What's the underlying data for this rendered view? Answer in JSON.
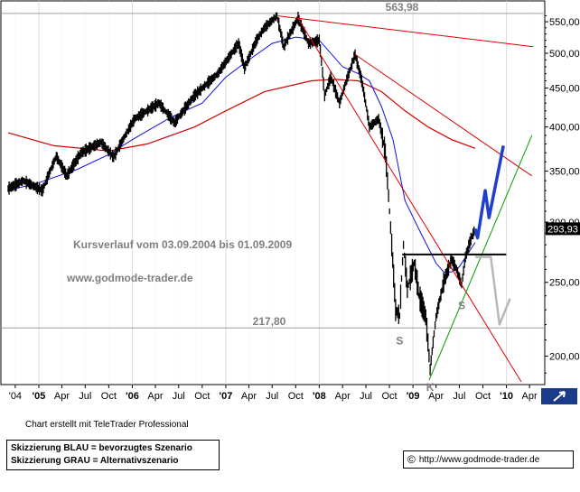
{
  "chart_data": {
    "type": "line",
    "title": "Kursverlauf vom 03.09.2004 bis 01.09.2009",
    "subtitle": "www.godmode-trader.de",
    "y_scale": "log",
    "ylim": [
      186,
      570
    ],
    "y_ticks": [
      "550,00",
      "500,00",
      "450,00",
      "400,00",
      "350,00",
      "300,00",
      "250,00",
      "200,00"
    ],
    "x_tick_labels": [
      "'04",
      "'05",
      "Apr",
      "Jul",
      "Oct",
      "'06",
      "Apr",
      "Jul",
      "Oct",
      "'07",
      "Apr",
      "Jul",
      "Oct",
      "'08",
      "Apr",
      "Jul",
      "Oct",
      "'09",
      "Apr",
      "Jul",
      "Oct",
      "'10",
      "Apr"
    ],
    "current_value_label": "293,93",
    "horizontal_levels": [
      {
        "label": "563,98",
        "value": 563.98,
        "color": "#a0a0a0"
      },
      {
        "label": "217,80",
        "value": 217.8,
        "color": "#a0a0a0"
      }
    ],
    "pattern_labels": [
      {
        "text": "S",
        "date": "2008-11-10",
        "value": 214
      },
      {
        "text": "S",
        "date": "2009-07-10",
        "value": 238
      },
      {
        "text": "K",
        "date": "2009-03-09",
        "value": 186
      }
    ],
    "neckline": {
      "start": "2008-11-20",
      "end": "2009-12-31",
      "value": 272,
      "color": "#000000"
    },
    "scenarios": [
      {
        "name": "Skizzierung BLAU = bevorzugtes Szenario",
        "color": "#1f3fcf",
        "points": [
          [
            "2009-09-01",
            294
          ],
          [
            "2009-09-10",
            286
          ],
          [
            "2009-10-10",
            330
          ],
          [
            "2009-10-25",
            304
          ],
          [
            "2009-12-20",
            378
          ]
        ]
      },
      {
        "name": "Skizzierung GRAU = Alternativszenario",
        "color": "#b8b8b8",
        "points": [
          [
            "2009-09-01",
            270
          ],
          [
            "2009-11-01",
            270
          ],
          [
            "2009-12-05",
            220
          ],
          [
            "2010-01-15",
            238
          ]
        ]
      }
    ],
    "trendlines": [
      {
        "color": "#e00000",
        "points": [
          [
            "2007-07-20",
            560
          ],
          [
            "2010-04-15",
            510
          ]
        ]
      },
      {
        "color": "#e00000",
        "points": [
          [
            "2007-10-10",
            556
          ],
          [
            "2010-02-28",
            185
          ]
        ]
      },
      {
        "color": "#e00000",
        "points": [
          [
            "2008-05-20",
            498
          ],
          [
            "2010-04-10",
            345
          ]
        ]
      },
      {
        "color": "#00a000",
        "points": [
          [
            "2009-03-05",
            186
          ],
          [
            "2010-04-10",
            390
          ]
        ]
      }
    ],
    "price_anchors": [
      [
        "2004-09-03",
        332
      ],
      [
        "2004-11-01",
        340
      ],
      [
        "2005-01-15",
        330
      ],
      [
        "2005-03-10",
        366
      ],
      [
        "2005-04-20",
        345
      ],
      [
        "2005-06-15",
        370
      ],
      [
        "2005-09-01",
        382
      ],
      [
        "2005-10-20",
        365
      ],
      [
        "2006-01-10",
        410
      ],
      [
        "2006-04-15",
        430
      ],
      [
        "2006-06-15",
        405
      ],
      [
        "2006-09-01",
        440
      ],
      [
        "2006-12-01",
        470
      ],
      [
        "2007-02-20",
        515
      ],
      [
        "2007-03-15",
        478
      ],
      [
        "2007-05-01",
        520
      ],
      [
        "2007-06-01",
        540
      ],
      [
        "2007-07-20",
        560
      ],
      [
        "2007-08-15",
        510
      ],
      [
        "2007-10-10",
        556
      ],
      [
        "2007-11-20",
        515
      ],
      [
        "2008-01-01",
        520
      ],
      [
        "2008-01-22",
        440
      ],
      [
        "2008-02-15",
        465
      ],
      [
        "2008-03-20",
        430
      ],
      [
        "2008-05-20",
        498
      ],
      [
        "2008-06-15",
        460
      ],
      [
        "2008-07-15",
        400
      ],
      [
        "2008-08-20",
        410
      ],
      [
        "2008-09-15",
        370
      ],
      [
        "2008-10-10",
        280
      ],
      [
        "2008-10-25",
        230
      ],
      [
        "2008-11-10",
        226
      ],
      [
        "2008-11-25",
        280
      ],
      [
        "2008-12-10",
        245
      ],
      [
        "2009-01-06",
        265
      ],
      [
        "2009-01-25",
        240
      ],
      [
        "2009-02-20",
        225
      ],
      [
        "2009-03-09",
        192
      ],
      [
        "2009-04-01",
        225
      ],
      [
        "2009-05-01",
        250
      ],
      [
        "2009-06-01",
        268
      ],
      [
        "2009-06-20",
        260
      ],
      [
        "2009-07-10",
        248
      ],
      [
        "2009-07-25",
        270
      ],
      [
        "2009-08-15",
        285
      ],
      [
        "2009-09-01",
        294
      ]
    ],
    "ma_fast": {
      "color": "#1010e0",
      "points": [
        [
          "2004-09-03",
          330
        ],
        [
          "2005-01-01",
          338
        ],
        [
          "2005-06-01",
          352
        ],
        [
          "2005-10-01",
          368
        ],
        [
          "2006-01-01",
          385
        ],
        [
          "2006-06-01",
          412
        ],
        [
          "2006-10-01",
          430
        ],
        [
          "2007-01-01",
          465
        ],
        [
          "2007-04-01",
          490
        ],
        [
          "2007-07-01",
          515
        ],
        [
          "2007-10-01",
          525
        ],
        [
          "2008-01-01",
          520
        ],
        [
          "2008-04-01",
          480
        ],
        [
          "2008-06-01",
          470
        ],
        [
          "2008-07-15",
          460
        ],
        [
          "2008-09-01",
          425
        ],
        [
          "2008-10-15",
          385
        ],
        [
          "2008-12-01",
          320
        ],
        [
          "2009-02-01",
          290
        ],
        [
          "2009-04-01",
          265
        ],
        [
          "2009-05-01",
          258
        ],
        [
          "2009-06-01",
          258
        ],
        [
          "2009-07-01",
          262
        ],
        [
          "2009-08-01",
          272
        ],
        [
          "2009-09-01",
          282
        ]
      ]
    },
    "ma_slow": {
      "color": "#d00000",
      "points": [
        [
          "2004-09-03",
          393
        ],
        [
          "2005-03-01",
          378
        ],
        [
          "2005-10-01",
          372
        ],
        [
          "2006-03-01",
          380
        ],
        [
          "2006-09-01",
          400
        ],
        [
          "2007-01-01",
          420
        ],
        [
          "2007-06-01",
          445
        ],
        [
          "2007-12-01",
          460
        ],
        [
          "2008-03-01",
          462
        ],
        [
          "2008-06-01",
          460
        ],
        [
          "2008-09-01",
          445
        ],
        [
          "2008-12-01",
          420
        ],
        [
          "2009-03-01",
          400
        ],
        [
          "2009-06-01",
          385
        ],
        [
          "2009-09-01",
          375
        ]
      ]
    }
  },
  "footer": {
    "credit": "Chart erstellt mit TeleTrader Professional",
    "legend_blue": "Skizzierung BLAU = bevorzugtes Szenario",
    "legend_grey": "Skizzierung GRAU = Alternativszenario",
    "source_symbol": "©",
    "source": "http://www.godmode-trader.de"
  }
}
